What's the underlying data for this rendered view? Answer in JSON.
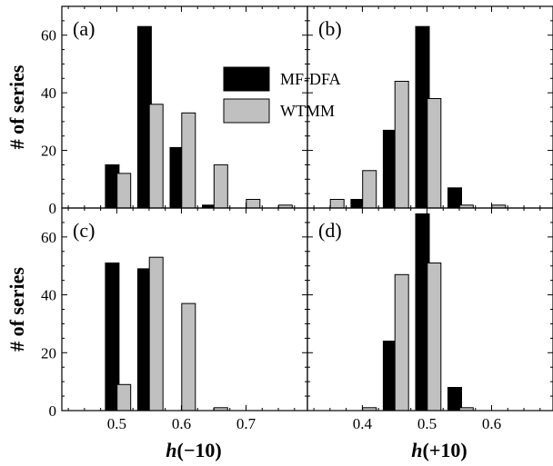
{
  "chart_data": [
    {
      "type": "bar",
      "panel_label": "(a)",
      "ylabel": "# of series",
      "xlabel": "",
      "xlim": [
        0.415,
        0.795
      ],
      "ylim": [
        0,
        70
      ],
      "xticks": [
        "0.5",
        "0.6",
        "0.7"
      ],
      "xtick_values": [
        0.5,
        0.6,
        0.7
      ],
      "yticks": [
        "0",
        "20",
        "40",
        "60"
      ],
      "ytick_values": [
        0,
        20,
        40,
        60
      ],
      "series": [
        {
          "name": "MF-DFA",
          "color": "#000000",
          "x": [
            0.493,
            0.543,
            0.593,
            0.643
          ],
          "values": [
            15,
            63,
            21,
            1
          ]
        },
        {
          "name": "WTMM",
          "color": "#c0c0c0",
          "x": [
            0.511,
            0.561,
            0.611,
            0.661,
            0.711,
            0.761
          ],
          "values": [
            12,
            36,
            33,
            15,
            3,
            1
          ]
        }
      ]
    },
    {
      "type": "bar",
      "panel_label": "(b)",
      "ylabel": "",
      "xlabel": "",
      "xlim": [
        0.315,
        0.695
      ],
      "ylim": [
        0,
        70
      ],
      "xticks": [
        "0.4",
        "0.5",
        "0.6"
      ],
      "xtick_values": [
        0.4,
        0.5,
        0.6
      ],
      "yticks": [
        "0",
        "20",
        "40",
        "60"
      ],
      "ytick_values": [
        0,
        20,
        40,
        60
      ],
      "series": [
        {
          "name": "MF-DFA",
          "color": "#000000",
          "x": [
            0.393,
            0.443,
            0.493,
            0.543
          ],
          "values": [
            3,
            27,
            63,
            7
          ]
        },
        {
          "name": "WTMM",
          "color": "#c0c0c0",
          "x": [
            0.361,
            0.411,
            0.461,
            0.511,
            0.561,
            0.611
          ],
          "values": [
            3,
            13,
            44,
            38,
            1,
            1
          ]
        }
      ]
    },
    {
      "type": "bar",
      "panel_label": "(c)",
      "ylabel": "# of series",
      "xlabel": "h(−10)",
      "xlim": [
        0.415,
        0.795
      ],
      "ylim": [
        0,
        70
      ],
      "xticks": [
        "0.5",
        "0.6",
        "0.7"
      ],
      "xtick_values": [
        0.5,
        0.6,
        0.7
      ],
      "yticks": [
        "0",
        "20",
        "40",
        "60"
      ],
      "ytick_values": [
        0,
        20,
        40,
        60
      ],
      "series": [
        {
          "name": "MF-DFA",
          "color": "#000000",
          "x": [
            0.493,
            0.543
          ],
          "values": [
            51,
            49
          ]
        },
        {
          "name": "WTMM",
          "color": "#c0c0c0",
          "x": [
            0.511,
            0.561,
            0.611,
            0.661
          ],
          "values": [
            9,
            53,
            37,
            1
          ]
        }
      ]
    },
    {
      "type": "bar",
      "panel_label": "(d)",
      "ylabel": "",
      "xlabel": "h(+10)",
      "xlim": [
        0.315,
        0.695
      ],
      "ylim": [
        0,
        70
      ],
      "xticks": [
        "0.4",
        "0.5",
        "0.6"
      ],
      "xtick_values": [
        0.4,
        0.5,
        0.6
      ],
      "yticks": [
        "0",
        "20",
        "40",
        "60"
      ],
      "ytick_values": [
        0,
        20,
        40,
        60
      ],
      "series": [
        {
          "name": "MF-DFA",
          "color": "#000000",
          "x": [
            0.443,
            0.493,
            0.543
          ],
          "values": [
            24,
            68,
            8
          ]
        },
        {
          "name": "WTMM",
          "color": "#c0c0c0",
          "x": [
            0.411,
            0.461,
            0.511,
            0.561
          ],
          "values": [
            1,
            47,
            51,
            1
          ]
        }
      ]
    }
  ],
  "legend": {
    "placement": "top-center",
    "entries": [
      {
        "label": "MF-DFA",
        "color": "#000000"
      },
      {
        "label": "WTMM",
        "color": "#c0c0c0"
      }
    ]
  }
}
